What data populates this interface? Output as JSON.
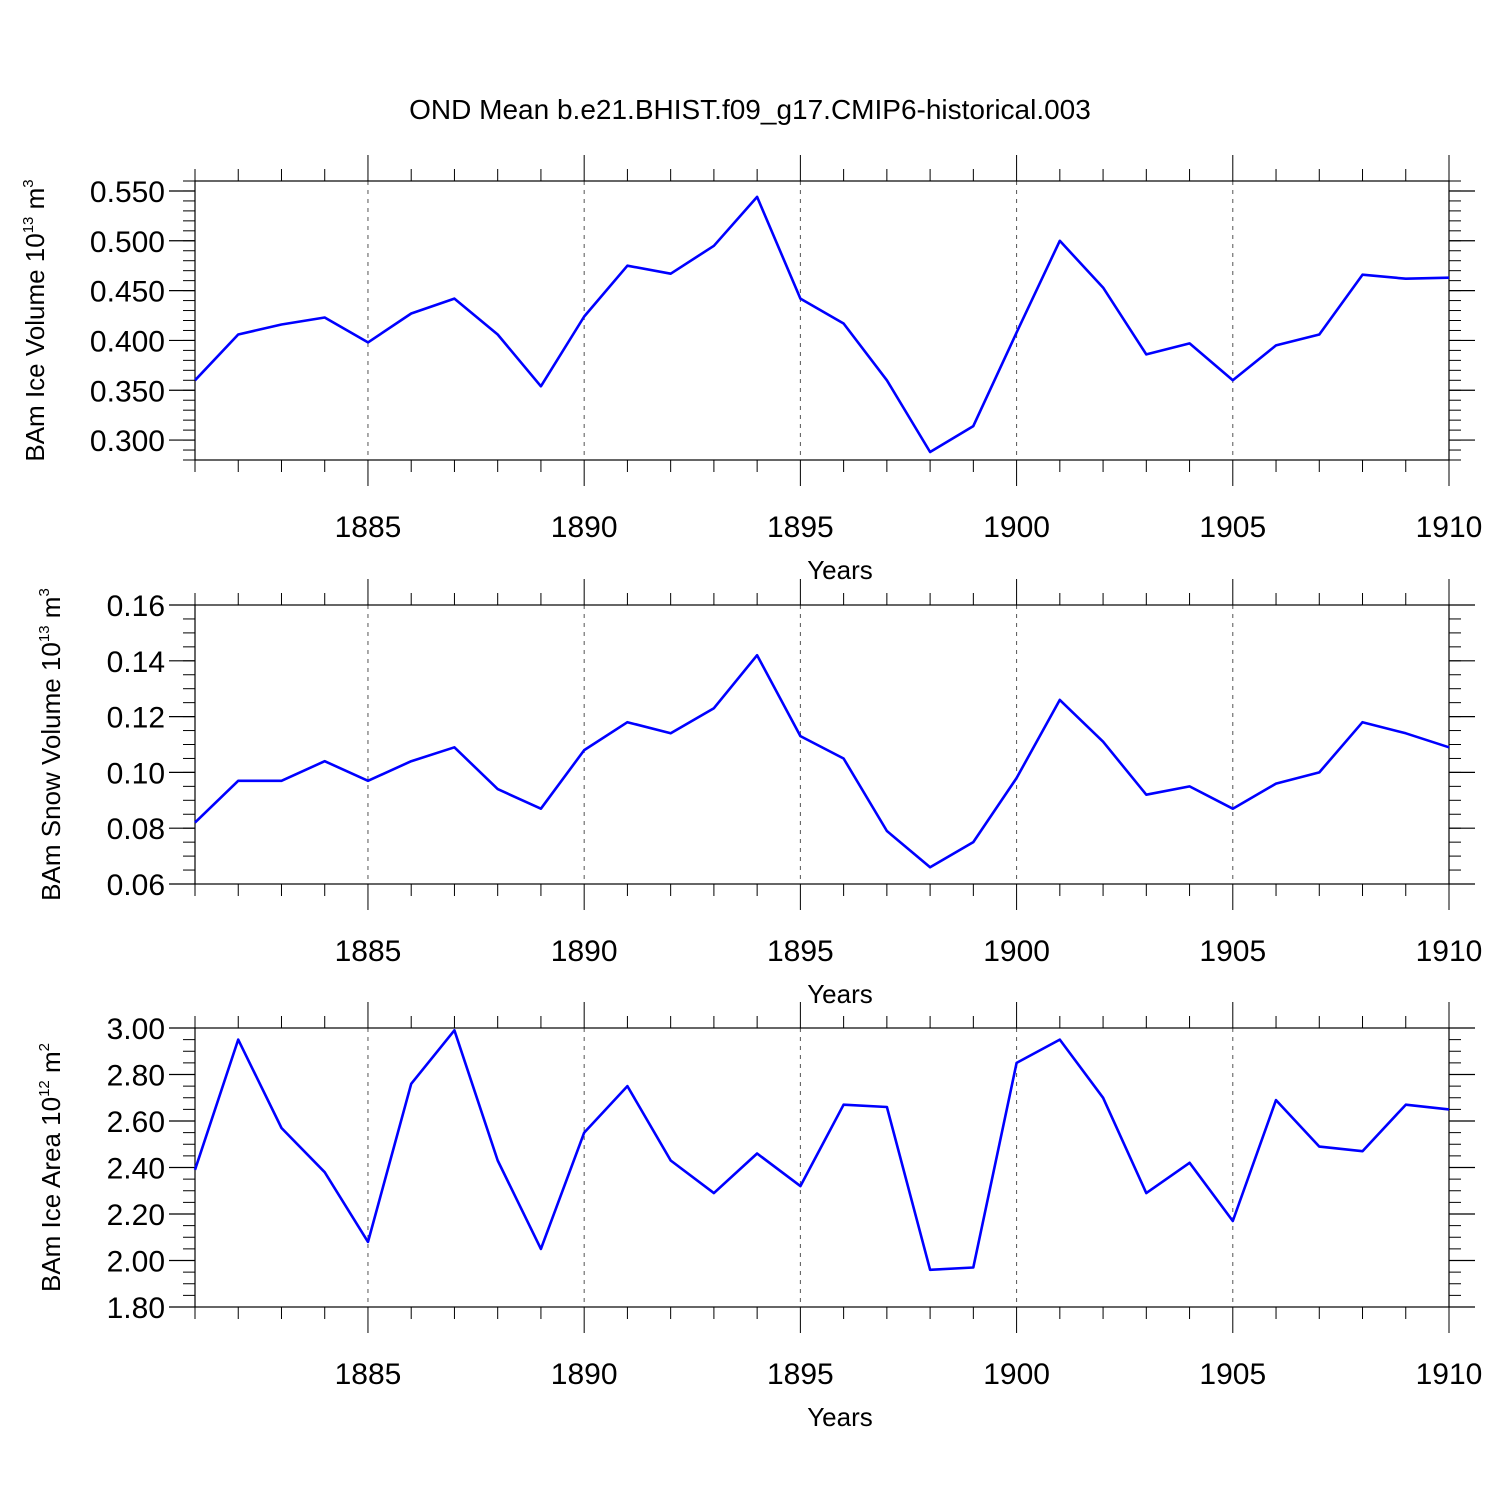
{
  "figure_title": "OND Mean b.e21.BHIST.f09_g17.CMIP6-historical.003",
  "colors": {
    "line": "#0000ff",
    "axis": "#000000",
    "grid": "#555555"
  },
  "chart_data": [
    {
      "type": "line",
      "title": "",
      "xlabel": "Years",
      "ylabel": {
        "prefix": "BAm Ice Volume 10",
        "exponent": "13",
        "unit": " m",
        "unit_exponent": "3"
      },
      "xlim": [
        1881,
        1910
      ],
      "ylim": [
        0.28,
        0.56
      ],
      "x_ticks": [
        1885,
        1890,
        1895,
        1900,
        1905,
        1910
      ],
      "x_tick_labels": [
        "1885",
        "1890",
        "1895",
        "1900",
        "1905",
        "1910"
      ],
      "y_ticks": [
        0.3,
        0.35,
        0.4,
        0.45,
        0.5,
        0.55
      ],
      "y_tick_labels": [
        "0.300",
        "0.350",
        "0.400",
        "0.450",
        "0.500",
        "0.550"
      ],
      "grid": "dashed vertical at major x ticks",
      "x": [
        1881,
        1882,
        1883,
        1884,
        1885,
        1886,
        1887,
        1888,
        1889,
        1890,
        1891,
        1892,
        1893,
        1894,
        1895,
        1896,
        1897,
        1898,
        1899,
        1900,
        1901,
        1902,
        1903,
        1904,
        1905,
        1906,
        1907,
        1908,
        1909,
        1910
      ],
      "values": [
        0.36,
        0.406,
        0.416,
        0.423,
        0.398,
        0.427,
        0.442,
        0.406,
        0.354,
        0.424,
        0.475,
        0.467,
        0.495,
        0.544,
        0.442,
        0.417,
        0.36,
        0.288,
        0.314,
        0.408,
        0.5,
        0.453,
        0.386,
        0.397,
        0.36,
        0.395,
        0.406,
        0.466,
        0.462,
        0.463
      ]
    },
    {
      "type": "line",
      "title": "",
      "xlabel": "Years",
      "ylabel": {
        "prefix": "BAm Snow Volume 10",
        "exponent": "13",
        "unit": " m",
        "unit_exponent": "3"
      },
      "xlim": [
        1881,
        1910
      ],
      "ylim": [
        0.06,
        0.16
      ],
      "x_ticks": [
        1885,
        1890,
        1895,
        1900,
        1905,
        1910
      ],
      "x_tick_labels": [
        "1885",
        "1890",
        "1895",
        "1900",
        "1905",
        "1910"
      ],
      "y_ticks": [
        0.06,
        0.08,
        0.1,
        0.12,
        0.14,
        0.16
      ],
      "y_tick_labels": [
        "0.06",
        "0.08",
        "0.10",
        "0.12",
        "0.14",
        "0.16"
      ],
      "grid": "dashed vertical at major x ticks",
      "x": [
        1881,
        1882,
        1883,
        1884,
        1885,
        1886,
        1887,
        1888,
        1889,
        1890,
        1891,
        1892,
        1893,
        1894,
        1895,
        1896,
        1897,
        1898,
        1899,
        1900,
        1901,
        1902,
        1903,
        1904,
        1905,
        1906,
        1907,
        1908,
        1909,
        1910
      ],
      "values": [
        0.082,
        0.097,
        0.097,
        0.104,
        0.097,
        0.104,
        0.109,
        0.094,
        0.087,
        0.108,
        0.118,
        0.114,
        0.123,
        0.142,
        0.113,
        0.105,
        0.079,
        0.066,
        0.075,
        0.098,
        0.126,
        0.111,
        0.092,
        0.095,
        0.087,
        0.096,
        0.1,
        0.118,
        0.114,
        0.109
      ]
    },
    {
      "type": "line",
      "title": "",
      "xlabel": "Years",
      "ylabel": {
        "prefix": "BAm Ice Area 10",
        "exponent": "12",
        "unit": " m",
        "unit_exponent": "2"
      },
      "xlim": [
        1881,
        1910
      ],
      "ylim": [
        1.8,
        3.0
      ],
      "x_ticks": [
        1885,
        1890,
        1895,
        1900,
        1905,
        1910
      ],
      "x_tick_labels": [
        "1885",
        "1890",
        "1895",
        "1900",
        "1905",
        "1910"
      ],
      "y_ticks": [
        1.8,
        2.0,
        2.2,
        2.4,
        2.6,
        2.8,
        3.0
      ],
      "y_tick_labels": [
        "1.80",
        "2.00",
        "2.20",
        "2.40",
        "2.60",
        "2.80",
        "3.00"
      ],
      "grid": "dashed vertical at major x ticks",
      "x": [
        1881,
        1882,
        1883,
        1884,
        1885,
        1886,
        1887,
        1888,
        1889,
        1890,
        1891,
        1892,
        1893,
        1894,
        1895,
        1896,
        1897,
        1898,
        1899,
        1900,
        1901,
        1902,
        1903,
        1904,
        1905,
        1906,
        1907,
        1908,
        1909,
        1910
      ],
      "values": [
        2.39,
        2.95,
        2.57,
        2.38,
        2.08,
        2.76,
        2.99,
        2.43,
        2.05,
        2.55,
        2.75,
        2.43,
        2.29,
        2.46,
        2.32,
        2.67,
        2.66,
        1.96,
        1.97,
        2.85,
        2.95,
        2.7,
        2.29,
        2.42,
        2.17,
        2.69,
        2.49,
        2.47,
        2.67,
        2.65
      ]
    }
  ]
}
